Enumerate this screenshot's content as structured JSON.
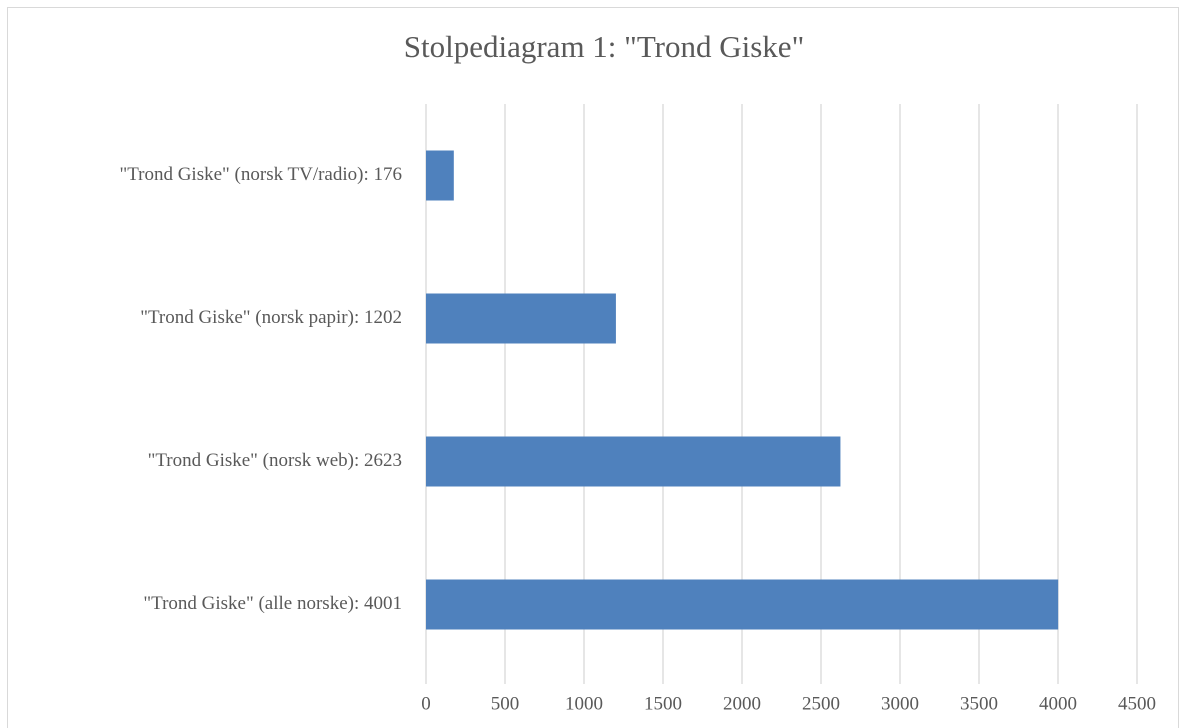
{
  "chart_data": {
    "type": "bar",
    "orientation": "horizontal",
    "title": "Stolpediagram 1: \"Trond Giske\"",
    "categories": [
      "\"Trond Giske\" (norsk TV/radio): 176",
      "\"Trond Giske\" (norsk papir): 1202",
      "\"Trond Giske\" (norsk web): 2623",
      "\"Trond Giske\" (alle norske): 4001"
    ],
    "values": [
      176,
      1202,
      2623,
      4001
    ],
    "color": "#4f81bd",
    "xlim": [
      0,
      4500
    ],
    "xticks": [
      0,
      500,
      1000,
      1500,
      2000,
      2500,
      3000,
      3500,
      4000,
      4500
    ],
    "grid": true
  }
}
